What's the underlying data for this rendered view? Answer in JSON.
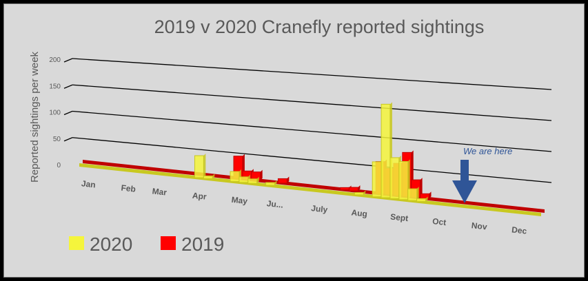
{
  "chart_data": {
    "type": "bar",
    "title": "2019 v 2020 Cranefly reported sightings",
    "ylabel": "Reported sightings per week",
    "xlabel": "",
    "ylim": [
      0,
      200
    ],
    "yticks": [
      "0",
      "50",
      "100",
      "150",
      "200"
    ],
    "grid": true,
    "month_labels": [
      "Jan",
      "Feb",
      "Mar",
      "Apr",
      "May",
      "Ju...",
      "July",
      "Aug",
      "Sept",
      "Oct",
      "Nov",
      "Dec"
    ],
    "month_label_weeks": [
      1,
      5.5,
      9,
      13.5,
      18,
      22,
      27,
      31.5,
      36,
      40.5,
      45,
      49.5
    ],
    "weeks": 52,
    "series": [
      {
        "name": "2019",
        "color": "#ff0000",
        "values": [
          2,
          2,
          2,
          2,
          2,
          2,
          2,
          2,
          2,
          2,
          2,
          2,
          2,
          2,
          2,
          2,
          2,
          40,
          15,
          15,
          3,
          2,
          8,
          2,
          2,
          2,
          2,
          3,
          2,
          4,
          6,
          3,
          2,
          55,
          45,
          55,
          75,
          30,
          8,
          2,
          2,
          2,
          2,
          2,
          2,
          2,
          2,
          2,
          2,
          2,
          2,
          2
        ]
      },
      {
        "name": "2020",
        "color": "#f5f53c",
        "values": [
          1,
          1,
          1,
          1,
          1,
          1,
          1,
          1,
          1,
          1,
          1,
          1,
          1,
          40,
          5,
          3,
          2,
          18,
          10,
          8,
          3,
          5,
          2,
          1,
          2,
          2,
          2,
          2,
          3,
          2,
          3,
          4,
          3,
          60,
          160,
          70,
          65,
          20,
          5,
          2,
          1,
          1,
          1
        ]
      }
    ],
    "legend": {
      "position": "bottom-left",
      "entries": [
        "2020",
        "2019"
      ]
    },
    "annotation": "We are here"
  }
}
